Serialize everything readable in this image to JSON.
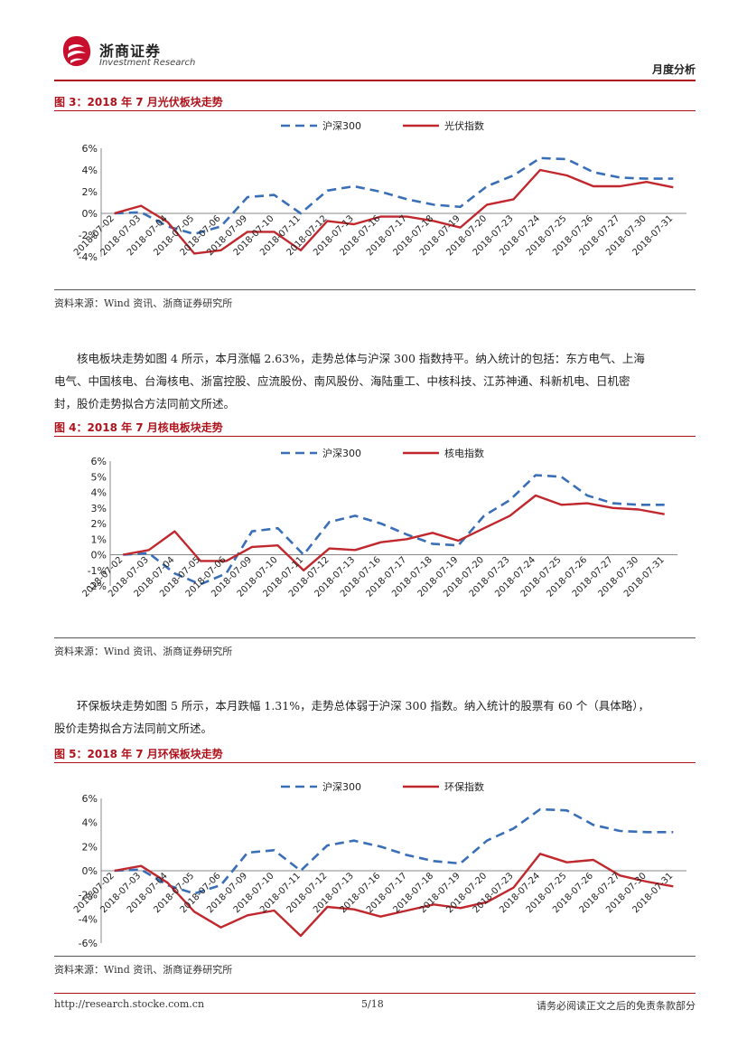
{
  "header": {
    "company_cn": "浙商证券",
    "company_en": "Investment Research",
    "section": "月度分析"
  },
  "colors": {
    "hs300": "#3a6fb7",
    "sector": "#c0282e",
    "accent": "#b0121b"
  },
  "fig3": {
    "title": "图 3：2018 年 7 月光伏板块走势",
    "source": "资料来源：Wind 资讯、浙商证券研究所"
  },
  "para1": {
    "line1": "核电板块走势如图 4 所示，本月涨幅 2.63%，走势总体与沪深 300 指数持平。纳入统计的包括：东方电气、上海",
    "line2": "电气、中国核电、台海核电、浙富控股、应流股份、南风股份、海陆重工、中核科技、江苏神通、科新机电、日机密",
    "line3": "封，股价走势拟合方法同前文所述。"
  },
  "fig4": {
    "title": "图 4：2018 年 7 月核电板块走势",
    "source": "资料来源：Wind 资讯、浙商证券研究所"
  },
  "para2": {
    "line1": "环保板块走势如图 5 所示，本月跌幅 1.31%，走势总体弱于沪深 300 指数。纳入统计的股票有 60 个（具体略），",
    "line2": "股价走势拟合方法同前文所述。"
  },
  "fig5": {
    "title": "图 5：2018 年 7 月环保板块走势",
    "source": "资料来源：Wind 资讯、浙商证券研究所"
  },
  "footer": {
    "url": "http://research.stocke.com.cn",
    "page": "5/18",
    "disclaimer": "请务必阅读正文之后的免责条款部分"
  },
  "chart_data": [
    {
      "type": "line",
      "title": "2018 年 7 月光伏板块走势",
      "categories": [
        "2018-07-02",
        "2018-07-03",
        "2018-07-04",
        "2018-07-05",
        "2018-07-06",
        "2018-07-09",
        "2018-07-10",
        "2018-07-11",
        "2018-07-12",
        "2018-07-13",
        "2018-07-16",
        "2018-07-17",
        "2018-07-18",
        "2018-07-19",
        "2018-07-20",
        "2018-07-23",
        "2018-07-24",
        "2018-07-25",
        "2018-07-26",
        "2018-07-27",
        "2018-07-30",
        "2018-07-31"
      ],
      "ylim": [
        -4,
        6
      ],
      "yticks": [
        -4,
        -2,
        0,
        2,
        4,
        6
      ],
      "ytick_labels": [
        "-4%",
        "-2%",
        "0%",
        "2%",
        "4%",
        "6%"
      ],
      "legend": "top-center",
      "series": [
        {
          "name": "沪深300",
          "style": "dashed",
          "values": [
            0,
            0.1,
            -1.2,
            -1.9,
            -1.2,
            1.5,
            1.7,
            0,
            2.1,
            2.5,
            2.0,
            1.3,
            0.8,
            0.6,
            2.5,
            3.5,
            5.1,
            5.0,
            3.8,
            3.3,
            3.2,
            3.2
          ]
        },
        {
          "name": "光伏指数",
          "style": "solid",
          "values": [
            0,
            0.7,
            -0.8,
            -3.7,
            -3.4,
            -1.7,
            -1.7,
            -3.4,
            -0.7,
            -1.0,
            -0.3,
            -0.3,
            -0.7,
            -1.3,
            0.8,
            1.3,
            4.0,
            3.5,
            2.5,
            2.5,
            2.9,
            2.4
          ]
        }
      ]
    },
    {
      "type": "line",
      "title": "2018 年 7 月核电板块走势",
      "categories": [
        "2018-07-02",
        "2018-07-03",
        "2018-07-04",
        "2018-07-05",
        "2018-07-06",
        "2018-07-09",
        "2018-07-10",
        "2018-07-11",
        "2018-07-12",
        "2018-07-13",
        "2018-07-16",
        "2018-07-17",
        "2018-07-18",
        "2018-07-19",
        "2018-07-20",
        "2018-07-23",
        "2018-07-24",
        "2018-07-25",
        "2018-07-26",
        "2018-07-27",
        "2018-07-30",
        "2018-07-31"
      ],
      "ylim": [
        -2,
        6
      ],
      "yticks": [
        -2,
        -1,
        0,
        1,
        2,
        3,
        4,
        5,
        6
      ],
      "ytick_labels": [
        "-2%",
        "-1%",
        "0%",
        "1%",
        "2%",
        "3%",
        "4%",
        "5%",
        "6%"
      ],
      "legend": "top-center",
      "series": [
        {
          "name": "沪深300",
          "style": "dashed",
          "values": [
            0,
            0.1,
            -1.2,
            -1.9,
            -1.2,
            1.5,
            1.7,
            0,
            2.1,
            2.5,
            2.0,
            1.3,
            0.7,
            0.6,
            2.5,
            3.5,
            5.1,
            5.0,
            3.8,
            3.3,
            3.2,
            3.2
          ]
        },
        {
          "name": "核电指数",
          "style": "solid",
          "values": [
            0,
            0.3,
            1.5,
            -0.4,
            -0.4,
            0.5,
            0.6,
            -1.0,
            0.4,
            0.3,
            0.8,
            1.0,
            1.4,
            0.9,
            1.7,
            2.5,
            3.8,
            3.2,
            3.3,
            3.0,
            2.9,
            2.6
          ]
        }
      ]
    },
    {
      "type": "line",
      "title": "2018 年 7 月环保板块走势",
      "categories": [
        "2018-07-02",
        "2018-07-03",
        "2018-07-04",
        "2018-07-05",
        "2018-07-06",
        "2018-07-09",
        "2018-07-10",
        "2018-07-11",
        "2018-07-12",
        "2018-07-13",
        "2018-07-16",
        "2018-07-17",
        "2018-07-18",
        "2018-07-19",
        "2018-07-20",
        "2018-07-23",
        "2018-07-24",
        "2018-07-25",
        "2018-07-26",
        "2018-07-27",
        "2018-07-30",
        "2018-07-31"
      ],
      "ylim": [
        -6,
        6
      ],
      "yticks": [
        -6,
        -4,
        -2,
        0,
        2,
        4,
        6
      ],
      "ytick_labels": [
        "-6%",
        "-4%",
        "-2%",
        "0%",
        "2%",
        "4%",
        "6%"
      ],
      "legend": "top-center",
      "series": [
        {
          "name": "沪深300",
          "style": "dashed",
          "values": [
            0,
            0.1,
            -1.2,
            -1.9,
            -1.2,
            1.5,
            1.7,
            0,
            2.1,
            2.5,
            2.0,
            1.3,
            0.8,
            0.6,
            2.5,
            3.5,
            5.1,
            5.0,
            3.8,
            3.3,
            3.2,
            3.2
          ]
        },
        {
          "name": "环保指数",
          "style": "solid",
          "values": [
            0,
            0.4,
            -1.0,
            -3.4,
            -4.7,
            -3.7,
            -3.3,
            -5.4,
            -3.0,
            -3.2,
            -3.8,
            -3.3,
            -2.8,
            -3.1,
            -2.6,
            -1.4,
            1.4,
            0.7,
            0.9,
            -0.4,
            -0.9,
            -1.3
          ]
        }
      ]
    }
  ]
}
